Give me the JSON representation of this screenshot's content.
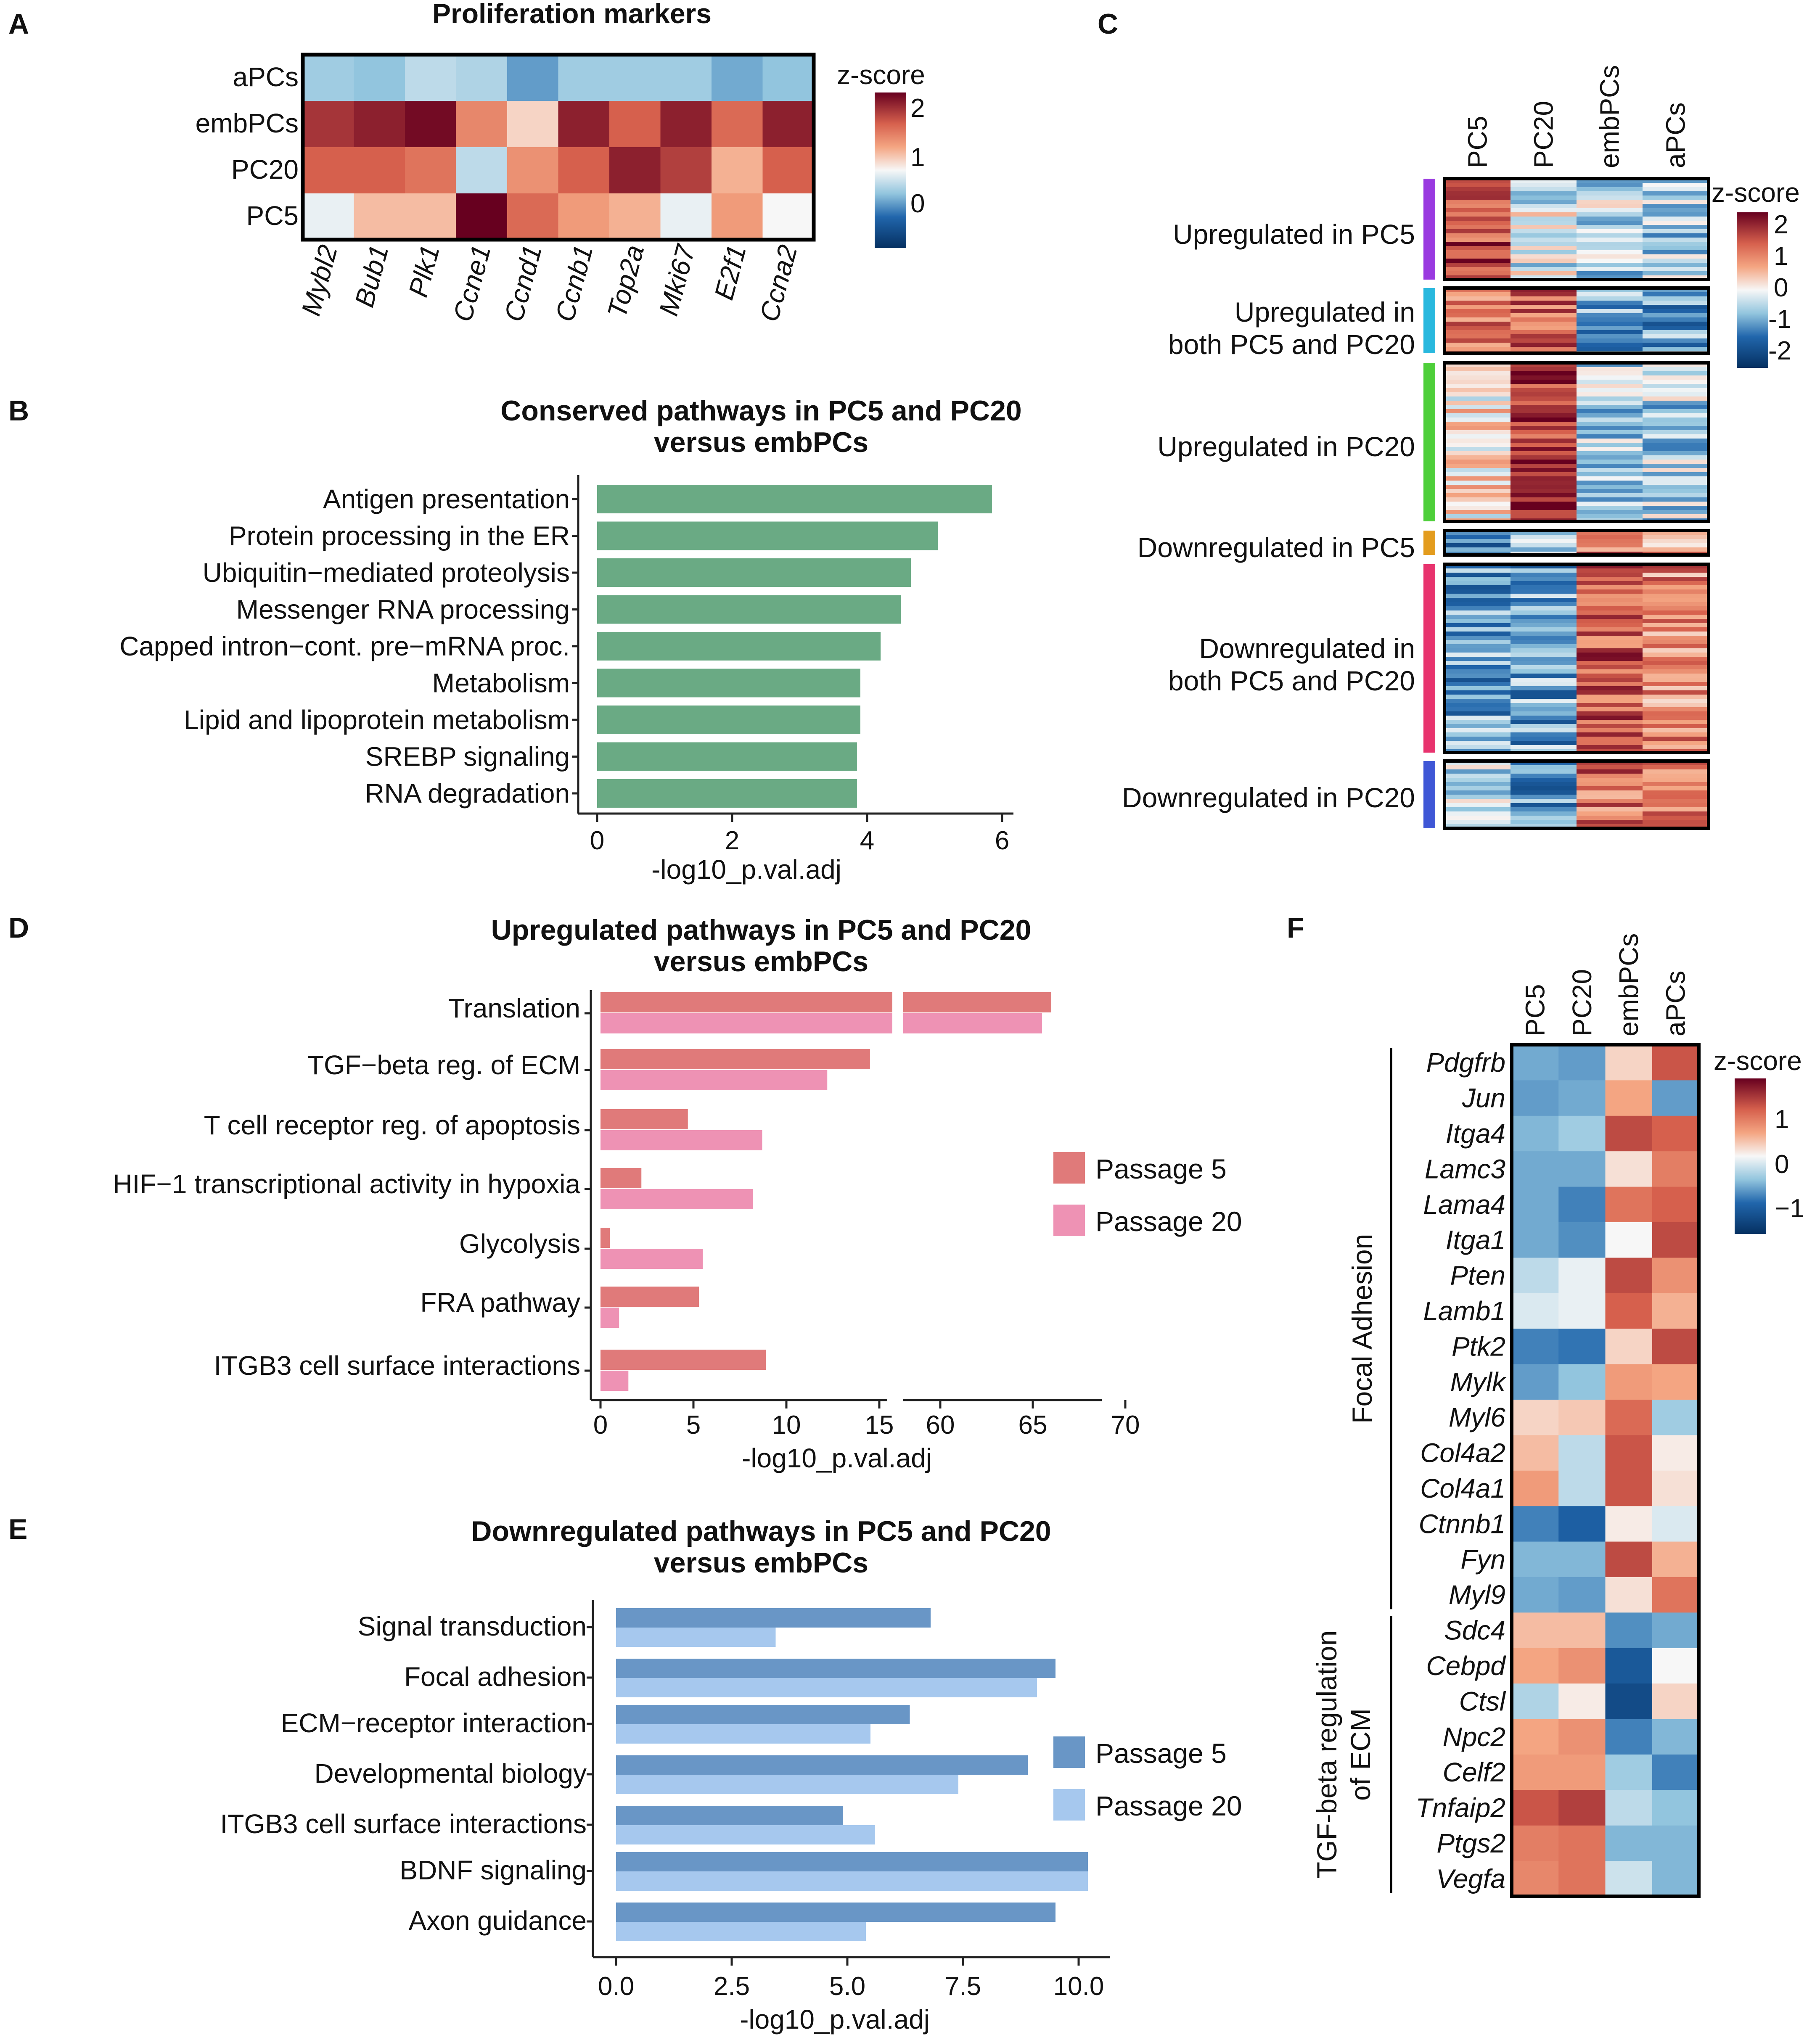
{
  "colors": {
    "green": "#6aaa84",
    "p5_red": "#e07a7a",
    "p20_pink": "#ee92b4",
    "p5_blue": "#6996c6",
    "p20_blue": "#a6c8ee",
    "cl_purple": "#9a3ae0",
    "cl_cyan": "#29b8de",
    "cl_green": "#4ecf3a",
    "cl_orange": "#e39c1e",
    "cl_magenta": "#e8336e",
    "cl_blue": "#3f57d6"
  },
  "panels": {
    "A": {
      "letter": "A",
      "chart_data": {
        "type": "heatmap",
        "title": "Proliferation markers",
        "rows": [
          "aPCs",
          "embPCs",
          "PC20",
          "PC5"
        ],
        "columns": [
          "Mybl2",
          "Bub1",
          "Plk1",
          "Ccne1",
          "Ccnd1",
          "Ccnb1",
          "Top2a",
          "Mki67",
          "E2f1",
          "Ccna2"
        ],
        "values": [
          [
            -0.6,
            -0.7,
            -0.4,
            -0.5,
            -1.0,
            -0.6,
            -0.6,
            -0.6,
            -0.9,
            -0.7
          ],
          [
            1.8,
            2.0,
            2.2,
            1.0,
            0.3,
            2.0,
            1.4,
            2.0,
            1.3,
            2.0
          ],
          [
            1.4,
            1.4,
            1.2,
            -0.4,
            0.9,
            1.4,
            2.0,
            1.7,
            0.6,
            1.4
          ],
          [
            -0.1,
            0.5,
            0.5,
            2.3,
            1.3,
            0.8,
            0.6,
            -0.1,
            0.8,
            0.0
          ]
        ],
        "legend": {
          "title": "z-score",
          "ticks": [
            "2",
            "1",
            "0"
          ],
          "range": [
            -1,
            2.2
          ]
        }
      }
    },
    "B": {
      "letter": "B",
      "chart_data": {
        "type": "bar",
        "title": "Conserved pathways in PC5 and PC20",
        "title2": "versus embPCs",
        "categories": [
          "Antigen presentation",
          "Protein processing in the ER",
          "Ubiquitin−mediated proteolysis",
          "Messenger RNA processing",
          "Capped intron−cont. pre−mRNA proc.",
          "Metabolism",
          "Lipid and lipoprotein metabolism",
          "SREBP signaling",
          "RNA  degradation"
        ],
        "values": [
          5.85,
          5.05,
          4.65,
          4.5,
          4.2,
          3.9,
          3.9,
          3.85,
          3.85
        ],
        "xlim": [
          0,
          6.3
        ],
        "xticks": [
          "0",
          "2",
          "4",
          "6"
        ],
        "xlabel": "-log10_p.val.adj"
      }
    },
    "C": {
      "letter": "C",
      "chart_data": {
        "type": "heatmap",
        "columns": [
          "PC5",
          "PC20",
          "embPCs",
          "aPCs"
        ],
        "clusters": [
          {
            "label1": "Upregulated in PC5",
            "label2": ""
          },
          {
            "label1": "Upregulated in",
            "label2": "both PC5 and PC20"
          },
          {
            "label1": "Upregulated in PC20",
            "label2": ""
          },
          {
            "label1": "Downregulated in PC5",
            "label2": ""
          },
          {
            "label1": "Downregulated in",
            "label2": "both PC5 and PC20"
          },
          {
            "label1": "Downregulated in PC20",
            "label2": ""
          }
        ],
        "cluster_means": [
          [
            1.6,
            -0.2,
            -0.4,
            -0.6
          ],
          [
            1.3,
            1.4,
            -0.8,
            -0.9
          ],
          [
            0.2,
            1.8,
            -0.5,
            -0.5
          ],
          [
            -1.0,
            -0.3,
            1.2,
            0.9
          ],
          [
            -0.9,
            -0.9,
            1.5,
            1.0
          ],
          [
            -0.3,
            -1.1,
            1.2,
            1.2
          ]
        ],
        "legend": {
          "title": "z-score",
          "ticks": [
            "2",
            "1",
            "0",
            "-1",
            "-2"
          ]
        }
      }
    },
    "D": {
      "letter": "D",
      "chart_data": {
        "type": "bar",
        "title": "Upregulated pathways in PC5 and PC20",
        "title2": "versus embPCs",
        "categories": [
          "Translation",
          "TGF−beta  reg.  of  ECM",
          "T cell receptor  reg. of apoptosis",
          "HIF−1  transcriptional  activity  in  hypoxia",
          "Glycolysis",
          "FRA pathway",
          "ITGB3  cell  surface  interactions"
        ],
        "series": [
          {
            "name": "Passage 5",
            "values": [
              66,
              14.5,
              4.7,
              2.2,
              0.5,
              5.3,
              8.9
            ]
          },
          {
            "name": "Passage 20",
            "values": [
              65.5,
              12.2,
              8.7,
              8.2,
              5.5,
              1.0,
              1.5
            ]
          }
        ],
        "axis_break": {
          "segment1": [
            0,
            16
          ],
          "segment2": [
            58,
            70
          ]
        },
        "xticks1": [
          "0",
          "5",
          "10",
          "15"
        ],
        "xticks2": [
          "60",
          "65",
          "70"
        ],
        "xlabel": "-log10_p.val.adj",
        "legend": [
          "Passage 5",
          "Passage 20"
        ]
      }
    },
    "E": {
      "letter": "E",
      "chart_data": {
        "type": "bar",
        "title": "Downregulated pathways in PC5 and PC20",
        "title2": "versus embPCs",
        "categories": [
          "Signal  transduction",
          "Focal  adhesion",
          "ECM−receptor  interaction",
          "Developmental  biology",
          "ITGB3  cell  surface  interactions",
          "BDNF  signaling",
          "Axon  guidance"
        ],
        "series": [
          {
            "name": "Passage 5",
            "values": [
              6.8,
              9.5,
              6.35,
              8.9,
              4.9,
              10.2,
              9.5
            ]
          },
          {
            "name": "Passage 20",
            "values": [
              3.45,
              9.1,
              5.5,
              7.4,
              5.6,
              10.2,
              5.4
            ]
          }
        ],
        "xlim": [
          -0.5,
          10.8
        ],
        "xticks": [
          "0.0",
          "2.5",
          "5.0",
          "7.5",
          "10.0"
        ],
        "xlabel": "-log10_p.val.adj",
        "legend": [
          "Passage 5",
          "Passage 20"
        ]
      }
    },
    "F": {
      "letter": "F",
      "chart_data": {
        "type": "heatmap",
        "columns": [
          "PC5",
          "PC20",
          "embPCs",
          "aPCs"
        ],
        "rows": [
          "Pdgfrb",
          "Jun",
          "Itga4",
          "Lamc3",
          "Lama4",
          "Itga1",
          "Pten",
          "Lamb1",
          "Ptk2",
          "Mylk",
          "Myl6",
          "Col4a2",
          "Col4a1",
          "Ctnnb1",
          "Fyn",
          "Myl9",
          "Sdc4",
          "Cebpd",
          "Ctsl",
          "Npc2",
          "Celf2",
          "Tnfaip2",
          "Ptgs2",
          "Vegfa"
        ],
        "values": [
          [
            -0.9,
            -1.0,
            0.3,
            1.5
          ],
          [
            -1.0,
            -0.9,
            0.7,
            -1.0
          ],
          [
            -0.8,
            -0.6,
            1.6,
            1.4
          ],
          [
            -0.9,
            -0.9,
            0.2,
            1.1
          ],
          [
            -0.9,
            -1.2,
            1.2,
            1.4
          ],
          [
            -0.9,
            -1.1,
            0.0,
            1.6
          ],
          [
            -0.4,
            -0.1,
            1.6,
            0.9
          ],
          [
            -0.2,
            -0.1,
            1.4,
            0.6
          ],
          [
            -1.2,
            -1.3,
            0.3,
            1.6
          ],
          [
            -1.0,
            -0.7,
            0.8,
            0.7
          ],
          [
            0.3,
            0.4,
            1.3,
            -0.6
          ],
          [
            0.5,
            -0.4,
            1.5,
            0.1
          ],
          [
            0.8,
            -0.4,
            1.5,
            0.2
          ],
          [
            -1.2,
            -1.5,
            0.1,
            -0.2
          ],
          [
            -0.8,
            -0.8,
            1.6,
            0.6
          ],
          [
            -0.9,
            -1.0,
            0.2,
            1.2
          ],
          [
            0.5,
            0.5,
            -1.1,
            -0.9
          ],
          [
            0.7,
            0.9,
            -1.6,
            0.0
          ],
          [
            -0.5,
            0.1,
            -1.8,
            0.3
          ],
          [
            0.7,
            0.9,
            -1.2,
            -0.8
          ],
          [
            0.8,
            0.8,
            -0.6,
            -1.2
          ],
          [
            1.5,
            1.7,
            -0.4,
            -0.7
          ],
          [
            1.1,
            1.2,
            -0.8,
            -0.8
          ],
          [
            1.0,
            1.2,
            -0.3,
            -0.8
          ]
        ],
        "groups": [
          {
            "label1": "Focal Adhesion",
            "label2": "",
            "start": 0,
            "end": 15
          },
          {
            "label1": "TGF-beta regulation",
            "label2": "of ECM",
            "start": 16,
            "end": 23
          }
        ],
        "legend": {
          "title": "z-score",
          "ticks": [
            "1",
            "0",
            "−1"
          ]
        }
      }
    }
  }
}
